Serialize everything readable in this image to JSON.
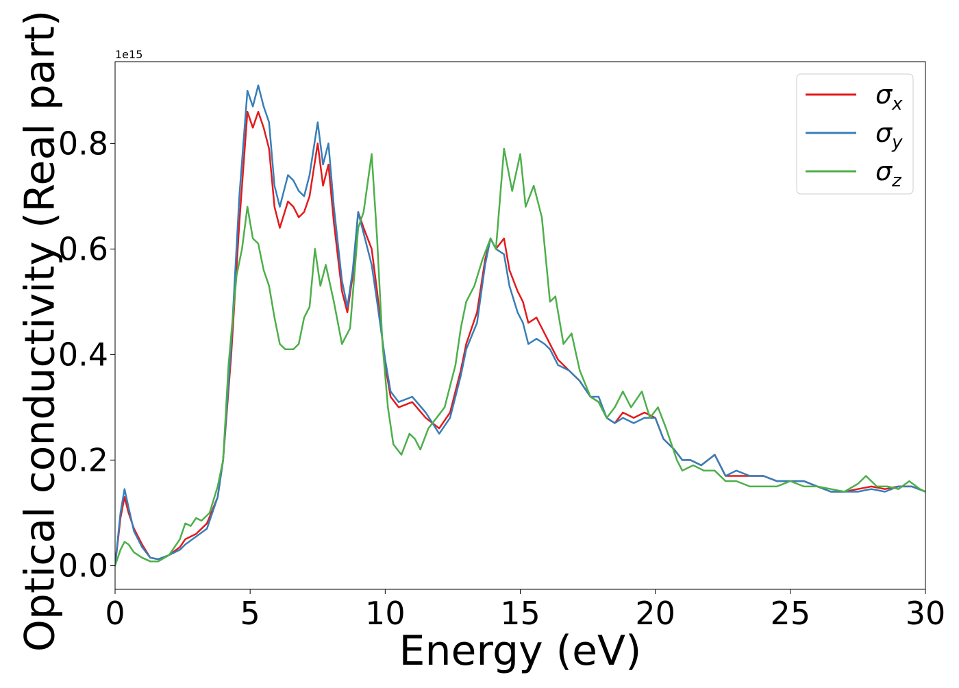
{
  "chart_data": {
    "type": "line",
    "title": "",
    "xlabel": "Energy (eV)",
    "ylabel": "Optical conductivity (Real part)",
    "y_offset_label": "1e15",
    "xlim": [
      0,
      30
    ],
    "ylim": [
      -0.045,
      0.955
    ],
    "xticks": [
      0,
      5,
      10,
      15,
      20,
      25,
      30
    ],
    "xtick_labels": [
      "0",
      "5",
      "10",
      "15",
      "20",
      "25",
      "30"
    ],
    "yticks": [
      0.0,
      0.2,
      0.4,
      0.6,
      0.8
    ],
    "ytick_labels": [
      "0.0",
      "0.2",
      "0.4",
      "0.6",
      "0.8"
    ],
    "grid": false,
    "legend_position": "top-right",
    "series": [
      {
        "name": "σx",
        "legend_main": "σ",
        "legend_sub": "x",
        "color": "#e41a1c",
        "points": [
          [
            0,
            0.0
          ],
          [
            0.2,
            0.09
          ],
          [
            0.35,
            0.13
          ],
          [
            0.5,
            0.1
          ],
          [
            0.7,
            0.07
          ],
          [
            1.0,
            0.04
          ],
          [
            1.3,
            0.015
          ],
          [
            1.6,
            0.012
          ],
          [
            2.0,
            0.02
          ],
          [
            2.4,
            0.035
          ],
          [
            2.6,
            0.05
          ],
          [
            3.0,
            0.06
          ],
          [
            3.4,
            0.08
          ],
          [
            3.8,
            0.13
          ],
          [
            4.0,
            0.2
          ],
          [
            4.3,
            0.4
          ],
          [
            4.6,
            0.65
          ],
          [
            4.9,
            0.86
          ],
          [
            5.1,
            0.83
          ],
          [
            5.3,
            0.86
          ],
          [
            5.5,
            0.83
          ],
          [
            5.7,
            0.79
          ],
          [
            5.9,
            0.68
          ],
          [
            6.1,
            0.64
          ],
          [
            6.4,
            0.69
          ],
          [
            6.6,
            0.68
          ],
          [
            6.8,
            0.66
          ],
          [
            7.0,
            0.67
          ],
          [
            7.2,
            0.7
          ],
          [
            7.5,
            0.8
          ],
          [
            7.7,
            0.72
          ],
          [
            7.9,
            0.76
          ],
          [
            8.1,
            0.65
          ],
          [
            8.4,
            0.52
          ],
          [
            8.6,
            0.48
          ],
          [
            8.8,
            0.55
          ],
          [
            9.0,
            0.67
          ],
          [
            9.2,
            0.64
          ],
          [
            9.5,
            0.6
          ],
          [
            9.7,
            0.52
          ],
          [
            10.0,
            0.38
          ],
          [
            10.2,
            0.32
          ],
          [
            10.5,
            0.3
          ],
          [
            11.0,
            0.31
          ],
          [
            11.5,
            0.28
          ],
          [
            12.0,
            0.26
          ],
          [
            12.4,
            0.29
          ],
          [
            12.8,
            0.37
          ],
          [
            13.0,
            0.42
          ],
          [
            13.4,
            0.48
          ],
          [
            13.7,
            0.58
          ],
          [
            13.9,
            0.62
          ],
          [
            14.1,
            0.6
          ],
          [
            14.4,
            0.62
          ],
          [
            14.6,
            0.56
          ],
          [
            14.9,
            0.52
          ],
          [
            15.1,
            0.5
          ],
          [
            15.3,
            0.46
          ],
          [
            15.6,
            0.47
          ],
          [
            15.9,
            0.44
          ],
          [
            16.1,
            0.42
          ],
          [
            16.4,
            0.39
          ],
          [
            16.8,
            0.37
          ],
          [
            17.2,
            0.35
          ],
          [
            17.6,
            0.32
          ],
          [
            17.9,
            0.31
          ],
          [
            18.2,
            0.28
          ],
          [
            18.5,
            0.27
          ],
          [
            18.8,
            0.29
          ],
          [
            19.2,
            0.28
          ],
          [
            19.6,
            0.29
          ],
          [
            20.0,
            0.28
          ],
          [
            20.3,
            0.24
          ],
          [
            20.7,
            0.22
          ],
          [
            21.0,
            0.2
          ],
          [
            21.3,
            0.2
          ],
          [
            21.7,
            0.19
          ],
          [
            22.2,
            0.21
          ],
          [
            22.6,
            0.17
          ],
          [
            23.0,
            0.17
          ],
          [
            23.5,
            0.17
          ],
          [
            24.0,
            0.17
          ],
          [
            24.5,
            0.16
          ],
          [
            25.0,
            0.16
          ],
          [
            25.5,
            0.16
          ],
          [
            26.0,
            0.15
          ],
          [
            26.5,
            0.14
          ],
          [
            27.0,
            0.14
          ],
          [
            27.5,
            0.145
          ],
          [
            28.0,
            0.15
          ],
          [
            28.5,
            0.145
          ],
          [
            29.0,
            0.15
          ],
          [
            29.5,
            0.15
          ],
          [
            30.0,
            0.14
          ]
        ]
      },
      {
        "name": "σy",
        "legend_main": "σ",
        "legend_sub": "y",
        "color": "#377eb8",
        "points": [
          [
            0,
            0.0
          ],
          [
            0.2,
            0.1
          ],
          [
            0.35,
            0.145
          ],
          [
            0.5,
            0.11
          ],
          [
            0.7,
            0.065
          ],
          [
            1.0,
            0.035
          ],
          [
            1.3,
            0.015
          ],
          [
            1.6,
            0.012
          ],
          [
            2.0,
            0.02
          ],
          [
            2.4,
            0.03
          ],
          [
            2.6,
            0.04
          ],
          [
            3.0,
            0.055
          ],
          [
            3.4,
            0.07
          ],
          [
            3.8,
            0.13
          ],
          [
            4.0,
            0.2
          ],
          [
            4.3,
            0.42
          ],
          [
            4.6,
            0.7
          ],
          [
            4.9,
            0.9
          ],
          [
            5.1,
            0.87
          ],
          [
            5.3,
            0.91
          ],
          [
            5.5,
            0.87
          ],
          [
            5.7,
            0.84
          ],
          [
            5.9,
            0.72
          ],
          [
            6.1,
            0.68
          ],
          [
            6.4,
            0.74
          ],
          [
            6.6,
            0.73
          ],
          [
            6.8,
            0.71
          ],
          [
            7.0,
            0.7
          ],
          [
            7.2,
            0.74
          ],
          [
            7.5,
            0.84
          ],
          [
            7.7,
            0.76
          ],
          [
            7.9,
            0.8
          ],
          [
            8.1,
            0.68
          ],
          [
            8.4,
            0.54
          ],
          [
            8.6,
            0.49
          ],
          [
            8.8,
            0.56
          ],
          [
            9.0,
            0.67
          ],
          [
            9.2,
            0.63
          ],
          [
            9.5,
            0.57
          ],
          [
            9.7,
            0.5
          ],
          [
            10.0,
            0.39
          ],
          [
            10.2,
            0.33
          ],
          [
            10.5,
            0.31
          ],
          [
            11.0,
            0.32
          ],
          [
            11.5,
            0.29
          ],
          [
            12.0,
            0.25
          ],
          [
            12.4,
            0.28
          ],
          [
            12.8,
            0.36
          ],
          [
            13.0,
            0.41
          ],
          [
            13.4,
            0.46
          ],
          [
            13.7,
            0.57
          ],
          [
            13.9,
            0.62
          ],
          [
            14.1,
            0.6
          ],
          [
            14.4,
            0.59
          ],
          [
            14.6,
            0.53
          ],
          [
            14.9,
            0.48
          ],
          [
            15.1,
            0.46
          ],
          [
            15.3,
            0.42
          ],
          [
            15.6,
            0.43
          ],
          [
            15.9,
            0.42
          ],
          [
            16.1,
            0.41
          ],
          [
            16.4,
            0.38
          ],
          [
            16.8,
            0.37
          ],
          [
            17.2,
            0.35
          ],
          [
            17.6,
            0.32
          ],
          [
            17.9,
            0.32
          ],
          [
            18.2,
            0.28
          ],
          [
            18.5,
            0.27
          ],
          [
            18.8,
            0.28
          ],
          [
            19.2,
            0.27
          ],
          [
            19.6,
            0.28
          ],
          [
            20.0,
            0.28
          ],
          [
            20.3,
            0.24
          ],
          [
            20.7,
            0.22
          ],
          [
            21.0,
            0.2
          ],
          [
            21.3,
            0.2
          ],
          [
            21.7,
            0.19
          ],
          [
            22.2,
            0.21
          ],
          [
            22.6,
            0.17
          ],
          [
            23.0,
            0.18
          ],
          [
            23.5,
            0.17
          ],
          [
            24.0,
            0.17
          ],
          [
            24.5,
            0.16
          ],
          [
            25.0,
            0.16
          ],
          [
            25.5,
            0.16
          ],
          [
            26.0,
            0.15
          ],
          [
            26.5,
            0.14
          ],
          [
            27.0,
            0.14
          ],
          [
            27.5,
            0.14
          ],
          [
            28.0,
            0.145
          ],
          [
            28.5,
            0.14
          ],
          [
            29.0,
            0.15
          ],
          [
            29.5,
            0.15
          ],
          [
            30.0,
            0.14
          ]
        ]
      },
      {
        "name": "σz",
        "legend_main": "σ",
        "legend_sub": "z",
        "color": "#4daf4a",
        "points": [
          [
            0,
            0.0
          ],
          [
            0.2,
            0.03
          ],
          [
            0.35,
            0.045
          ],
          [
            0.5,
            0.04
          ],
          [
            0.7,
            0.025
          ],
          [
            1.0,
            0.015
          ],
          [
            1.3,
            0.008
          ],
          [
            1.6,
            0.008
          ],
          [
            2.0,
            0.02
          ],
          [
            2.4,
            0.05
          ],
          [
            2.6,
            0.08
          ],
          [
            2.8,
            0.075
          ],
          [
            3.0,
            0.09
          ],
          [
            3.2,
            0.085
          ],
          [
            3.5,
            0.1
          ],
          [
            3.8,
            0.15
          ],
          [
            4.0,
            0.2
          ],
          [
            4.2,
            0.38
          ],
          [
            4.5,
            0.55
          ],
          [
            4.7,
            0.6
          ],
          [
            4.9,
            0.68
          ],
          [
            5.1,
            0.62
          ],
          [
            5.3,
            0.61
          ],
          [
            5.5,
            0.56
          ],
          [
            5.7,
            0.53
          ],
          [
            5.9,
            0.47
          ],
          [
            6.1,
            0.42
          ],
          [
            6.3,
            0.41
          ],
          [
            6.6,
            0.41
          ],
          [
            6.8,
            0.42
          ],
          [
            7.0,
            0.47
          ],
          [
            7.2,
            0.49
          ],
          [
            7.4,
            0.6
          ],
          [
            7.6,
            0.53
          ],
          [
            7.8,
            0.57
          ],
          [
            8.1,
            0.5
          ],
          [
            8.4,
            0.42
          ],
          [
            8.7,
            0.45
          ],
          [
            9.0,
            0.64
          ],
          [
            9.2,
            0.67
          ],
          [
            9.5,
            0.78
          ],
          [
            9.7,
            0.62
          ],
          [
            9.9,
            0.42
          ],
          [
            10.1,
            0.3
          ],
          [
            10.3,
            0.23
          ],
          [
            10.6,
            0.21
          ],
          [
            10.9,
            0.25
          ],
          [
            11.1,
            0.24
          ],
          [
            11.3,
            0.22
          ],
          [
            11.6,
            0.26
          ],
          [
            11.9,
            0.28
          ],
          [
            12.2,
            0.3
          ],
          [
            12.4,
            0.34
          ],
          [
            12.6,
            0.38
          ],
          [
            12.8,
            0.45
          ],
          [
            13.0,
            0.5
          ],
          [
            13.3,
            0.53
          ],
          [
            13.6,
            0.58
          ],
          [
            13.9,
            0.62
          ],
          [
            14.1,
            0.6
          ],
          [
            14.4,
            0.79
          ],
          [
            14.7,
            0.71
          ],
          [
            15.0,
            0.78
          ],
          [
            15.2,
            0.68
          ],
          [
            15.5,
            0.72
          ],
          [
            15.8,
            0.66
          ],
          [
            16.1,
            0.5
          ],
          [
            16.3,
            0.51
          ],
          [
            16.6,
            0.42
          ],
          [
            16.9,
            0.44
          ],
          [
            17.2,
            0.37
          ],
          [
            17.6,
            0.32
          ],
          [
            17.9,
            0.31
          ],
          [
            18.2,
            0.28
          ],
          [
            18.5,
            0.3
          ],
          [
            18.8,
            0.33
          ],
          [
            19.1,
            0.3
          ],
          [
            19.5,
            0.33
          ],
          [
            19.8,
            0.28
          ],
          [
            20.1,
            0.3
          ],
          [
            20.4,
            0.26
          ],
          [
            20.8,
            0.2
          ],
          [
            21.0,
            0.18
          ],
          [
            21.4,
            0.19
          ],
          [
            21.8,
            0.18
          ],
          [
            22.2,
            0.18
          ],
          [
            22.6,
            0.16
          ],
          [
            23.0,
            0.16
          ],
          [
            23.5,
            0.15
          ],
          [
            24.0,
            0.15
          ],
          [
            24.5,
            0.15
          ],
          [
            25.0,
            0.16
          ],
          [
            25.5,
            0.15
          ],
          [
            26.0,
            0.15
          ],
          [
            26.5,
            0.145
          ],
          [
            27.0,
            0.14
          ],
          [
            27.5,
            0.155
          ],
          [
            27.8,
            0.17
          ],
          [
            28.2,
            0.15
          ],
          [
            28.6,
            0.15
          ],
          [
            29.0,
            0.145
          ],
          [
            29.4,
            0.16
          ],
          [
            29.8,
            0.145
          ],
          [
            30.0,
            0.14
          ]
        ]
      }
    ]
  }
}
